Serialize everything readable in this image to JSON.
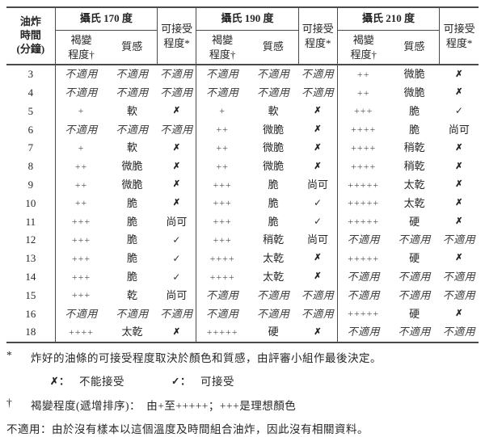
{
  "table": {
    "time_header": "油炸\n時間\n(分鐘)",
    "browning_header": "褐變\n程度†",
    "texture_header": "質感",
    "acceptability_header": "可接受\n程度*",
    "groups": [
      {
        "temp": "攝氏 170 度"
      },
      {
        "temp": "攝氏 190 度"
      },
      {
        "temp": "攝氏 210 度"
      }
    ],
    "na_label": "不適用",
    "rows": [
      {
        "time": "3",
        "cells": [
          "不適用",
          "不適用",
          "不適用",
          "不適用",
          "不適用",
          "不適用",
          "++",
          "微脆",
          "✗"
        ]
      },
      {
        "time": "4",
        "cells": [
          "不適用",
          "不適用",
          "不適用",
          "不適用",
          "不適用",
          "不適用",
          "++",
          "微脆",
          "✗"
        ]
      },
      {
        "time": "5",
        "cells": [
          "+",
          "軟",
          "✗",
          "+",
          "軟",
          "✗",
          "+++",
          "脆",
          "✓"
        ]
      },
      {
        "time": "6",
        "cells": [
          "不適用",
          "不適用",
          "不適用",
          "++",
          "微脆",
          "✗",
          "++++",
          "脆",
          "尚可"
        ]
      },
      {
        "time": "7",
        "cells": [
          "+",
          "軟",
          "✗",
          "++",
          "微脆",
          "✗",
          "++++",
          "稍乾",
          "✗"
        ]
      },
      {
        "time": "8",
        "cells": [
          "++",
          "微脆",
          "✗",
          "++",
          "微脆",
          "✗",
          "++++",
          "稍乾",
          "✗"
        ]
      },
      {
        "time": "9",
        "cells": [
          "++",
          "微脆",
          "✗",
          "+++",
          "脆",
          "尚可",
          "+++++",
          "太乾",
          "✗"
        ]
      },
      {
        "time": "10",
        "cells": [
          "++",
          "脆",
          "✗",
          "+++",
          "脆",
          "✓",
          "+++++",
          "太乾",
          "✗"
        ]
      },
      {
        "time": "11",
        "cells": [
          "+++",
          "脆",
          "尚可",
          "+++",
          "脆",
          "✓",
          "+++++",
          "硬",
          "✗"
        ]
      },
      {
        "time": "12",
        "cells": [
          "+++",
          "脆",
          "✓",
          "+++",
          "稍乾",
          "尚可",
          "不適用",
          "不適用",
          "不適用"
        ]
      },
      {
        "time": "13",
        "cells": [
          "+++",
          "脆",
          "✓",
          "++++",
          "太乾",
          "✗",
          "+++++",
          "硬",
          "✗"
        ]
      },
      {
        "time": "14",
        "cells": [
          "+++",
          "脆",
          "✓",
          "++++",
          "太乾",
          "✗",
          "不適用",
          "不適用",
          "不適用"
        ]
      },
      {
        "time": "15",
        "cells": [
          "+++",
          "乾",
          "尚可",
          "不適用",
          "不適用",
          "不適用",
          "不適用",
          "不適用",
          "不適用"
        ]
      },
      {
        "time": "16",
        "cells": [
          "不適用",
          "不適用",
          "不適用",
          "不適用",
          "不適用",
          "不適用",
          "+++++",
          "硬",
          "✗"
        ]
      },
      {
        "time": "18",
        "cells": [
          "++++",
          "太乾",
          "✗",
          "+++++",
          "硬",
          "✗",
          "不適用",
          "不適用",
          "不適用"
        ]
      }
    ]
  },
  "footnotes": {
    "fn1_marker": "*",
    "fn1_text": "炸好的油條的可接受程度取決於顏色和質感，由評審小組作最後決定。",
    "legend_cross_symbol": "✗：",
    "legend_cross_label": "不能接受",
    "legend_check_symbol": "✓：",
    "legend_check_label": "可接受",
    "fn2_marker": "†",
    "fn2_text": "褐變程度(遞增排序)：　由+至+++++；+++是理想顏色",
    "fn3_text": "不適用：由於沒有樣本以這個溫度及時間組合油炸，因此沒有相關資料。"
  },
  "colors": {
    "border": "#4a4a4a",
    "text": "#262626",
    "bottom_strip": "#d8e4f0"
  }
}
